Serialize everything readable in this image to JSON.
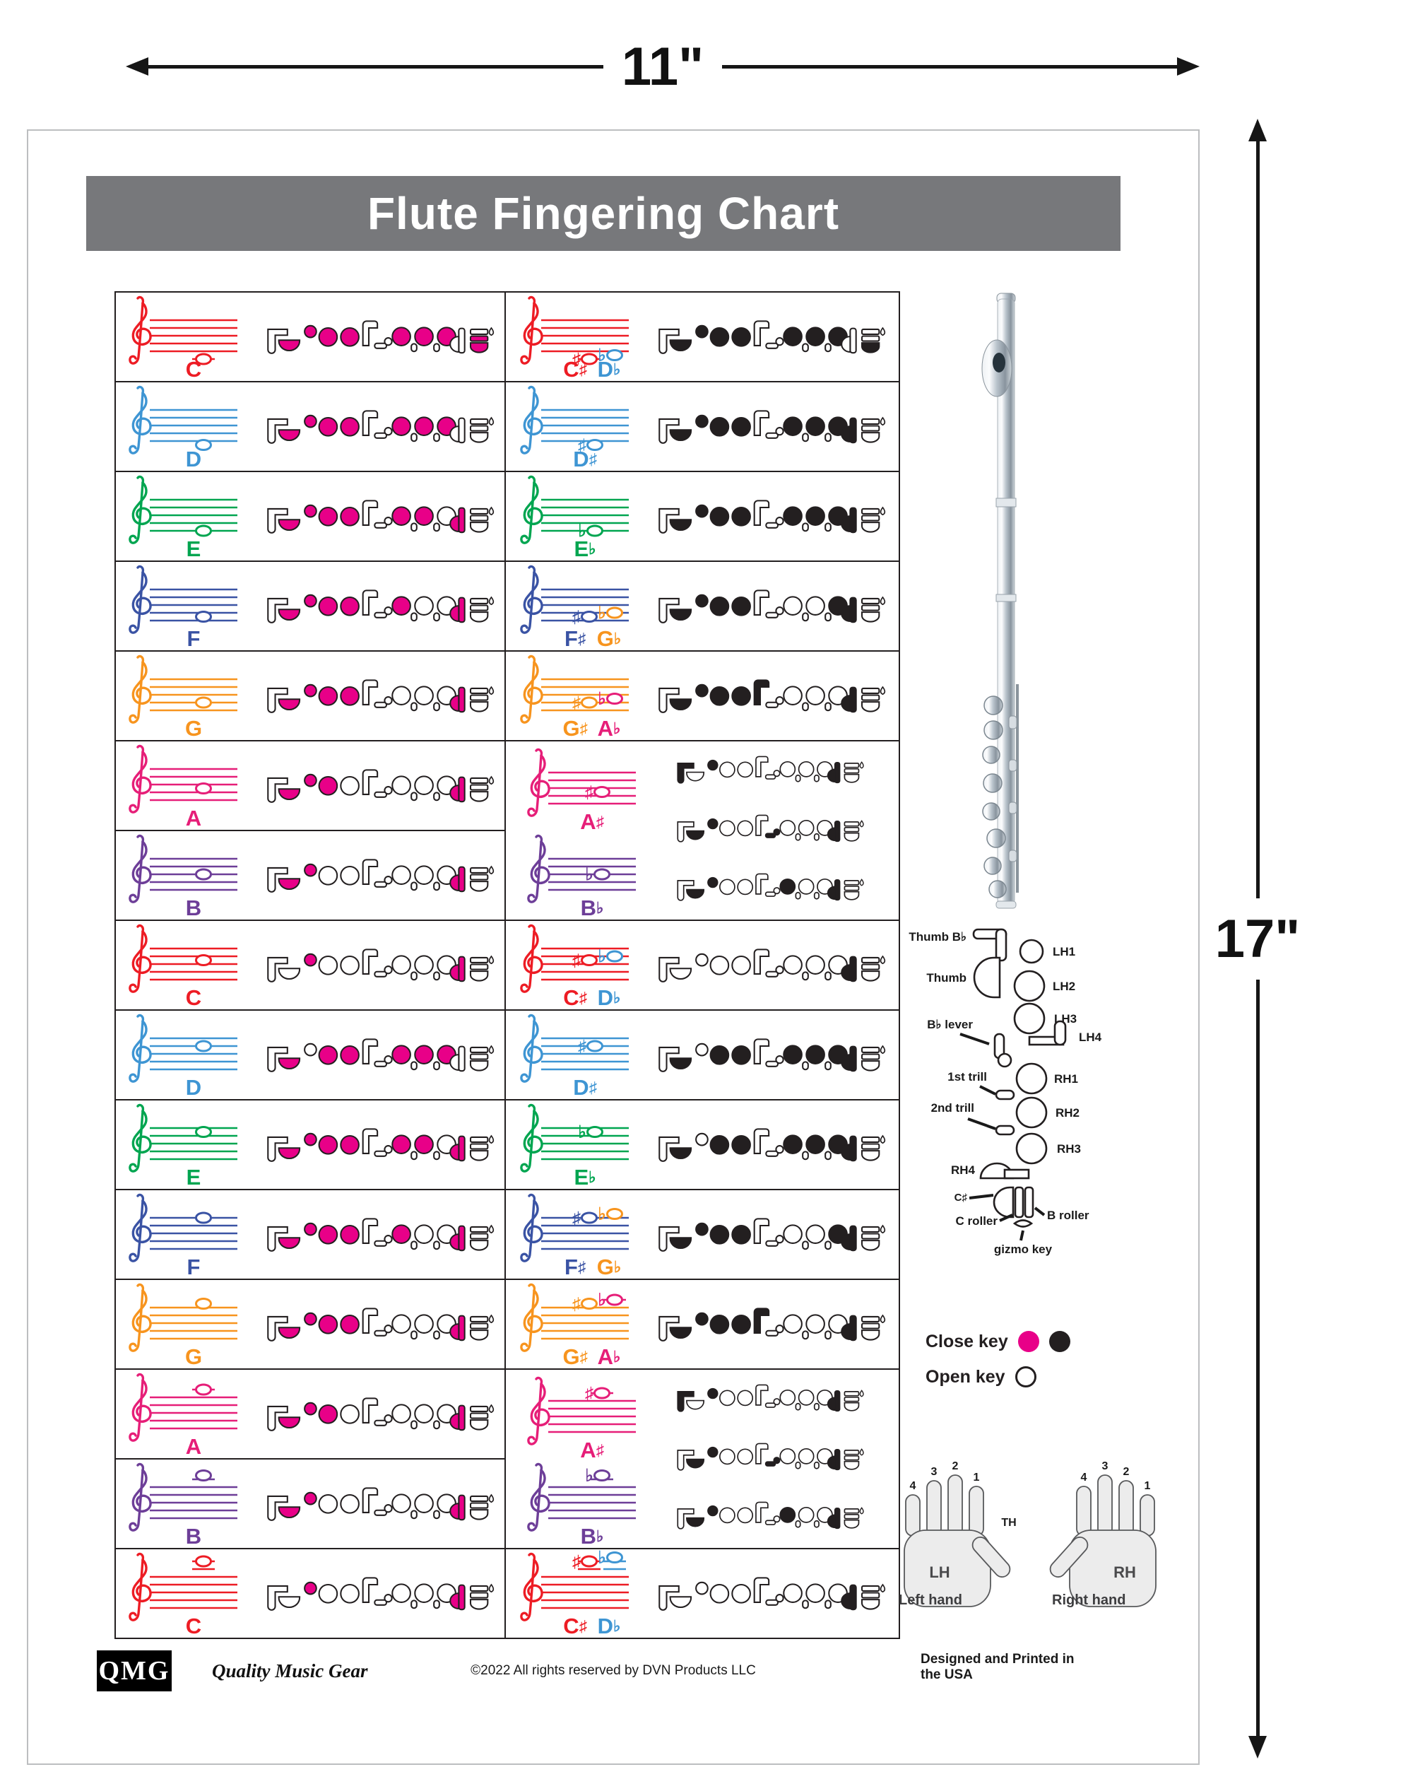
{
  "dimensions": {
    "width_label": "11\"",
    "height_label": "17\""
  },
  "title": "Flute Fingering Chart",
  "palette": {
    "C": "#ed1c24",
    "D": "#3e95d3",
    "E": "#00a550",
    "F": "#3a53a4",
    "G": "#f7941e",
    "A": "#e61e78",
    "B": "#6d3e98",
    "closed_pink": "#e80088",
    "closed_black": "#231f20",
    "banner": "#77787b",
    "ink": "#231f20"
  },
  "key_legend": {
    "close_key": "Close key",
    "open_key": "Open key",
    "keymap": {
      "thumb_bb": "Thumb B♭",
      "thumb": "Thumb",
      "lh1": "LH1",
      "lh2": "LH2",
      "lh3": "LH3",
      "lh4": "LH4",
      "bb_lever": "B♭ lever",
      "trill1": "1st trill",
      "trill2": "2nd trill",
      "rh1": "RH1",
      "rh2": "RH2",
      "rh3": "RH3",
      "rh4": "RH4",
      "csharp": "C♯",
      "c_roller": "C roller",
      "b_roller": "B roller",
      "gizmo": "gizmo key"
    }
  },
  "hands": {
    "lh": "LH",
    "rh": "RH",
    "th": "TH",
    "left_caption": "Left hand",
    "right_caption": "Right hand",
    "left_fingers": [
      "4",
      "3",
      "2",
      "1"
    ],
    "right_fingers": [
      "1",
      "2",
      "3",
      "4"
    ]
  },
  "footer": {
    "logo": "QMG",
    "brand": "Quality Music Gear",
    "copyright": "©2022 All rights reserved by DVN Products LLC",
    "made": "Designed and Printed in the USA"
  },
  "fingerings": {
    "C4": [
      "thumb",
      "lh1",
      "lh2",
      "lh3",
      "rh1",
      "rh2",
      "rh3",
      "c_roller",
      "b_roller"
    ],
    "Cs4": [
      "thumb",
      "lh1",
      "lh2",
      "lh3",
      "rh1",
      "rh2",
      "rh3",
      "b_roller"
    ],
    "D4": [
      "thumb",
      "lh1",
      "lh2",
      "lh3",
      "rh1",
      "rh2",
      "rh3"
    ],
    "Eb4": [
      "thumb",
      "lh1",
      "lh2",
      "lh3",
      "rh1",
      "rh2",
      "rh3",
      "rh4"
    ],
    "E4": [
      "thumb",
      "lh1",
      "lh2",
      "lh3",
      "rh1",
      "rh2",
      "rh4"
    ],
    "F4": [
      "thumb",
      "lh1",
      "lh2",
      "lh3",
      "rh1",
      "rh4"
    ],
    "Fs4": [
      "thumb",
      "lh1",
      "lh2",
      "lh3",
      "rh3",
      "rh4"
    ],
    "G4": [
      "thumb",
      "lh1",
      "lh2",
      "lh3",
      "rh4"
    ],
    "Gs4": [
      "thumb",
      "lh1",
      "lh2",
      "lh3",
      "lh4",
      "rh4"
    ],
    "A4": [
      "thumb",
      "lh1",
      "lh2",
      "rh4"
    ],
    "B4": [
      "thumb",
      "lh1",
      "rh4"
    ],
    "C5": [
      "lh1",
      "rh4"
    ],
    "Cs5": [
      "rh4"
    ],
    "D5": [
      "thumb",
      "lh2",
      "lh3",
      "rh1",
      "rh2",
      "rh3"
    ],
    "Eb5": [
      "thumb",
      "lh2",
      "lh3",
      "rh1",
      "rh2",
      "rh3",
      "rh4"
    ],
    "Bb_thumb": [
      "thumb_bb",
      "lh1",
      "rh4"
    ],
    "Bb_lever": [
      "thumb",
      "lh1",
      "bb_lever",
      "rh4"
    ],
    "Bb_one_one": [
      "thumb",
      "lh1",
      "rh1",
      "rh4"
    ]
  },
  "left_cells": [
    {
      "label": [
        {
          "letter": "C",
          "acc": null,
          "color": "C"
        }
      ],
      "staff": "C",
      "notes": [
        {
          "step": -2,
          "acc": null,
          "color": "C",
          "ledgers": [
            -2
          ]
        }
      ],
      "fing": "C4"
    },
    {
      "label": [
        {
          "letter": "D",
          "acc": null,
          "color": "D"
        }
      ],
      "staff": "D",
      "notes": [
        {
          "step": -1,
          "acc": null,
          "color": "D",
          "ledgers": []
        }
      ],
      "fing": "D4"
    },
    {
      "label": [
        {
          "letter": "E",
          "acc": null,
          "color": "E"
        }
      ],
      "staff": "E",
      "notes": [
        {
          "step": 0,
          "acc": null,
          "color": "E",
          "ledgers": []
        }
      ],
      "fing": "E4"
    },
    {
      "label": [
        {
          "letter": "F",
          "acc": null,
          "color": "F"
        }
      ],
      "staff": "F",
      "notes": [
        {
          "step": 1,
          "acc": null,
          "color": "F",
          "ledgers": []
        }
      ],
      "fing": "F4"
    },
    {
      "label": [
        {
          "letter": "G",
          "acc": null,
          "color": "G"
        }
      ],
      "staff": "G",
      "notes": [
        {
          "step": 2,
          "acc": null,
          "color": "G",
          "ledgers": []
        }
      ],
      "fing": "G4"
    },
    {
      "label": [
        {
          "letter": "A",
          "acc": null,
          "color": "A"
        }
      ],
      "staff": "A",
      "notes": [
        {
          "step": 3,
          "acc": null,
          "color": "A",
          "ledgers": []
        }
      ],
      "fing": "A4"
    },
    {
      "label": [
        {
          "letter": "B",
          "acc": null,
          "color": "B"
        }
      ],
      "staff": "B",
      "notes": [
        {
          "step": 4,
          "acc": null,
          "color": "B",
          "ledgers": []
        }
      ],
      "fing": "B4"
    },
    {
      "label": [
        {
          "letter": "C",
          "acc": null,
          "color": "C"
        }
      ],
      "staff": "C",
      "notes": [
        {
          "step": 5,
          "acc": null,
          "color": "C",
          "ledgers": []
        }
      ],
      "fing": "C5"
    },
    {
      "label": [
        {
          "letter": "D",
          "acc": null,
          "color": "D"
        }
      ],
      "staff": "D",
      "notes": [
        {
          "step": 6,
          "acc": null,
          "color": "D",
          "ledgers": []
        }
      ],
      "fing": "D5"
    },
    {
      "label": [
        {
          "letter": "E",
          "acc": null,
          "color": "E"
        }
      ],
      "staff": "E",
      "notes": [
        {
          "step": 7,
          "acc": null,
          "color": "E",
          "ledgers": []
        }
      ],
      "fing": "E4"
    },
    {
      "label": [
        {
          "letter": "F",
          "acc": null,
          "color": "F"
        }
      ],
      "staff": "F",
      "notes": [
        {
          "step": 8,
          "acc": null,
          "color": "F",
          "ledgers": []
        }
      ],
      "fing": "F4"
    },
    {
      "label": [
        {
          "letter": "G",
          "acc": null,
          "color": "G"
        }
      ],
      "staff": "G",
      "notes": [
        {
          "step": 9,
          "acc": null,
          "color": "G",
          "ledgers": []
        }
      ],
      "fing": "G4"
    },
    {
      "label": [
        {
          "letter": "A",
          "acc": null,
          "color": "A"
        }
      ],
      "staff": "A",
      "notes": [
        {
          "step": 10,
          "acc": null,
          "color": "A",
          "ledgers": [
            10
          ]
        }
      ],
      "fing": "A4"
    },
    {
      "label": [
        {
          "letter": "B",
          "acc": null,
          "color": "B"
        }
      ],
      "staff": "B",
      "notes": [
        {
          "step": 11,
          "acc": null,
          "color": "B",
          "ledgers": [
            10
          ]
        }
      ],
      "fing": "B4"
    },
    {
      "label": [
        {
          "letter": "C",
          "acc": null,
          "color": "C"
        }
      ],
      "staff": "C",
      "notes": [
        {
          "step": 12,
          "acc": null,
          "color": "C",
          "ledgers": [
            10,
            12
          ]
        }
      ],
      "fing": "C5"
    }
  ],
  "right_cells": [
    {
      "span": 1,
      "staffs": [
        {
          "staff": "C",
          "label": [
            {
              "letter": "C",
              "acc": "♯",
              "color": "C"
            },
            {
              "letter": "D",
              "acc": "♭",
              "color": "D"
            }
          ],
          "notes": [
            {
              "step": -2,
              "acc": "♯",
              "color": "C",
              "ledgers": [
                -2
              ]
            },
            {
              "step": -1,
              "acc": "♭",
              "color": "D",
              "ledgers": []
            }
          ]
        }
      ],
      "fings": [
        "Cs4"
      ]
    },
    {
      "span": 1,
      "staffs": [
        {
          "staff": "D",
          "label": [
            {
              "letter": "D",
              "acc": "♯",
              "color": "D"
            }
          ],
          "notes": [
            {
              "step": -1,
              "acc": "♯",
              "color": "D",
              "ledgers": []
            }
          ]
        }
      ],
      "fings": [
        "Eb4"
      ]
    },
    {
      "span": 1,
      "staffs": [
        {
          "staff": "E",
          "label": [
            {
              "letter": "E",
              "acc": "♭",
              "color": "E"
            }
          ],
          "notes": [
            {
              "step": 0,
              "acc": "♭",
              "color": "E",
              "ledgers": []
            }
          ]
        }
      ],
      "fings": [
        "Eb4"
      ]
    },
    {
      "span": 1,
      "staffs": [
        {
          "staff": "F",
          "label": [
            {
              "letter": "F",
              "acc": "♯",
              "color": "F"
            },
            {
              "letter": "G",
              "acc": "♭",
              "color": "G"
            }
          ],
          "notes": [
            {
              "step": 1,
              "acc": "♯",
              "color": "F",
              "ledgers": []
            },
            {
              "step": 2,
              "acc": "♭",
              "color": "G",
              "ledgers": []
            }
          ]
        }
      ],
      "fings": [
        "Fs4"
      ]
    },
    {
      "span": 1,
      "staffs": [
        {
          "staff": "G",
          "label": [
            {
              "letter": "G",
              "acc": "♯",
              "color": "G"
            },
            {
              "letter": "A",
              "acc": "♭",
              "color": "A"
            }
          ],
          "notes": [
            {
              "step": 2,
              "acc": "♯",
              "color": "G",
              "ledgers": []
            },
            {
              "step": 3,
              "acc": "♭",
              "color": "A",
              "ledgers": []
            }
          ]
        }
      ],
      "fings": [
        "Gs4"
      ]
    },
    {
      "span": 2,
      "staffs": [
        {
          "staff": "A",
          "label": [
            {
              "letter": "A",
              "acc": "♯",
              "color": "A"
            }
          ],
          "notes": [
            {
              "step": 3,
              "acc": "♯",
              "color": "A",
              "ledgers": []
            }
          ]
        },
        {
          "staff": "B",
          "label": [
            {
              "letter": "B",
              "acc": "♭",
              "color": "B"
            }
          ],
          "notes": [
            {
              "step": 4,
              "acc": "♭",
              "color": "B",
              "ledgers": []
            }
          ]
        }
      ],
      "fings": [
        "Bb_thumb",
        "Bb_lever",
        "Bb_one_one"
      ]
    },
    {
      "span": 1,
      "staffs": [
        {
          "staff": "C",
          "label": [
            {
              "letter": "C",
              "acc": "♯",
              "color": "C"
            },
            {
              "letter": "D",
              "acc": "♭",
              "color": "D"
            }
          ],
          "notes": [
            {
              "step": 5,
              "acc": "♯",
              "color": "C",
              "ledgers": []
            },
            {
              "step": 6,
              "acc": "♭",
              "color": "D",
              "ledgers": []
            }
          ]
        }
      ],
      "fings": [
        "Cs5"
      ]
    },
    {
      "span": 1,
      "staffs": [
        {
          "staff": "D",
          "label": [
            {
              "letter": "D",
              "acc": "♯",
              "color": "D"
            }
          ],
          "notes": [
            {
              "step": 6,
              "acc": "♯",
              "color": "D",
              "ledgers": []
            }
          ]
        }
      ],
      "fings": [
        "Eb5"
      ]
    },
    {
      "span": 1,
      "staffs": [
        {
          "staff": "E",
          "label": [
            {
              "letter": "E",
              "acc": "♭",
              "color": "E"
            }
          ],
          "notes": [
            {
              "step": 7,
              "acc": "♭",
              "color": "E",
              "ledgers": []
            }
          ]
        }
      ],
      "fings": [
        "Eb5"
      ]
    },
    {
      "span": 1,
      "staffs": [
        {
          "staff": "F",
          "label": [
            {
              "letter": "F",
              "acc": "♯",
              "color": "F"
            },
            {
              "letter": "G",
              "acc": "♭",
              "color": "G"
            }
          ],
          "notes": [
            {
              "step": 8,
              "acc": "♯",
              "color": "F",
              "ledgers": []
            },
            {
              "step": 9,
              "acc": "♭",
              "color": "G",
              "ledgers": []
            }
          ]
        }
      ],
      "fings": [
        "Fs4"
      ]
    },
    {
      "span": 1,
      "staffs": [
        {
          "staff": "G",
          "label": [
            {
              "letter": "G",
              "acc": "♯",
              "color": "G"
            },
            {
              "letter": "A",
              "acc": "♭",
              "color": "A"
            }
          ],
          "notes": [
            {
              "step": 9,
              "acc": "♯",
              "color": "G",
              "ledgers": []
            },
            {
              "step": 10,
              "acc": "♭",
              "color": "A",
              "ledgers": [
                10
              ]
            }
          ]
        }
      ],
      "fings": [
        "Gs4"
      ]
    },
    {
      "span": 2,
      "staffs": [
        {
          "staff": "A",
          "label": [
            {
              "letter": "A",
              "acc": "♯",
              "color": "A"
            }
          ],
          "notes": [
            {
              "step": 10,
              "acc": "♯",
              "color": "A",
              "ledgers": [
                10
              ]
            }
          ]
        },
        {
          "staff": "B",
          "label": [
            {
              "letter": "B",
              "acc": "♭",
              "color": "B"
            }
          ],
          "notes": [
            {
              "step": 11,
              "acc": "♭",
              "color": "B",
              "ledgers": [
                10
              ]
            }
          ]
        }
      ],
      "fings": [
        "Bb_thumb",
        "Bb_lever",
        "Bb_one_one"
      ]
    },
    {
      "span": 1,
      "staffs": [
        {
          "staff": "C",
          "label": [
            {
              "letter": "C",
              "acc": "♯",
              "color": "C"
            },
            {
              "letter": "D",
              "acc": "♭",
              "color": "D"
            }
          ],
          "notes": [
            {
              "step": 12,
              "acc": "♯",
              "color": "C",
              "ledgers": [
                10,
                12
              ]
            },
            {
              "step": 13,
              "acc": "♭",
              "color": "D",
              "ledgers": [
                10,
                12
              ]
            }
          ]
        }
      ],
      "fings": [
        "Cs5"
      ]
    }
  ]
}
